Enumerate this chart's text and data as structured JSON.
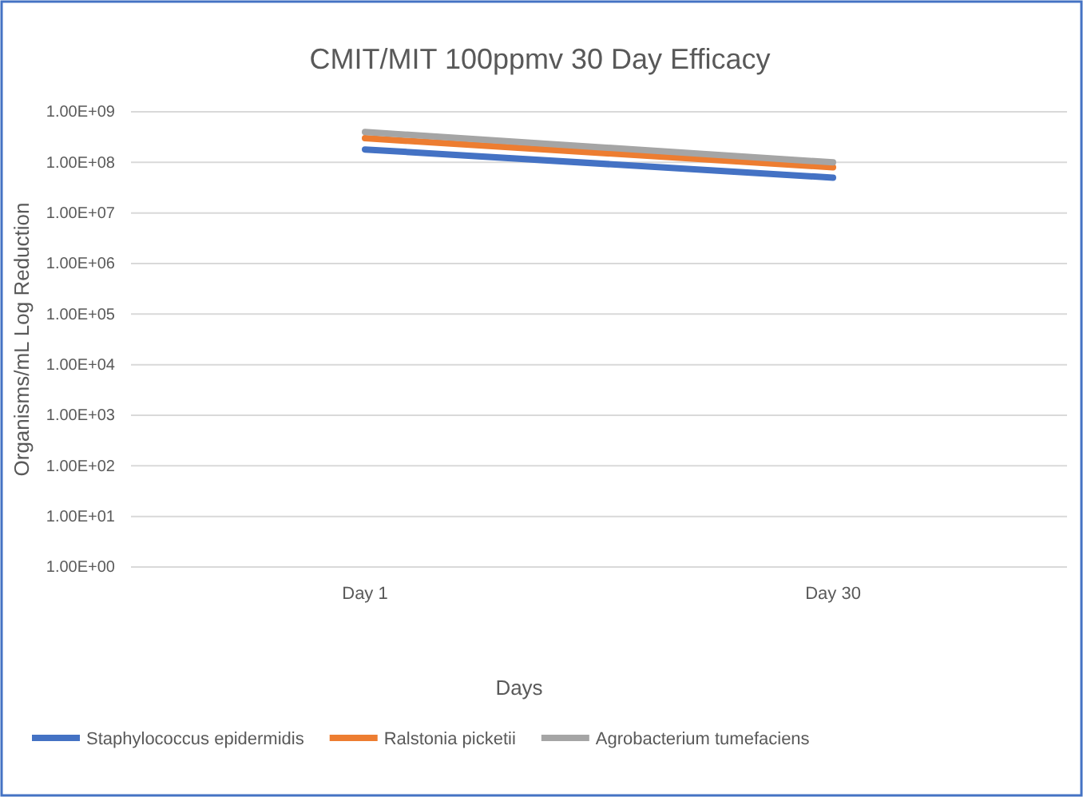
{
  "chart_data": {
    "type": "line",
    "title": "CMIT/MIT 100ppmv 30 Day Efficacy",
    "xlabel": "Days",
    "ylabel": "Organisms/mL Log Reduction",
    "categories": [
      "Day 1",
      "Day 30"
    ],
    "series": [
      {
        "name": "Staphylococcus epidermidis",
        "color": "#4472c4",
        "values": [
          180000000,
          50000000
        ]
      },
      {
        "name": "Ralstonia picketii",
        "color": "#ed7d31",
        "values": [
          300000000,
          80000000
        ]
      },
      {
        "name": "Agrobacterium tumefaciens",
        "color": "#a5a5a5",
        "values": [
          400000000,
          100000000
        ]
      }
    ],
    "log": "y",
    "ylim": [
      1,
      1000000000
    ],
    "yticks": [
      {
        "value": 1,
        "label": "1.00E+00"
      },
      {
        "value": 10,
        "label": "1.00E+01"
      },
      {
        "value": 100,
        "label": "1.00E+02"
      },
      {
        "value": 1000,
        "label": "1.00E+03"
      },
      {
        "value": 10000,
        "label": "1.00E+04"
      },
      {
        "value": 100000,
        "label": "1.00E+05"
      },
      {
        "value": 1000000,
        "label": "1.00E+06"
      },
      {
        "value": 10000000,
        "label": "1.00E+07"
      },
      {
        "value": 100000000,
        "label": "1.00E+08"
      },
      {
        "value": 1000000000,
        "label": "1.00E+09"
      }
    ],
    "grid": "y",
    "legend": "bottom",
    "marker": "none",
    "line_style": "solid"
  }
}
